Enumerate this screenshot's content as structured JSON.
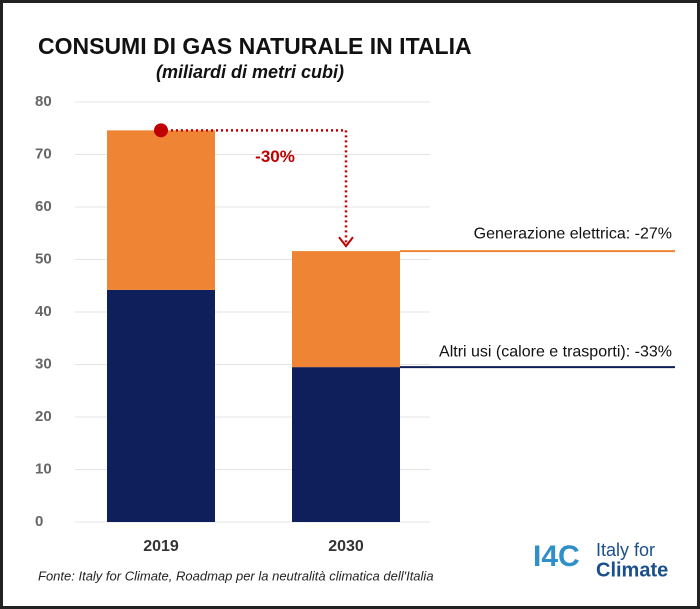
{
  "chart_data": {
    "type": "stacked-bar",
    "title": "CONSUMI DI GAS NATURALE IN ITALIA",
    "subtitle": "(miliardi di metri cubi)",
    "categories": [
      "2019",
      "2030"
    ],
    "series": [
      {
        "color": "#0f1f5c",
        "values": [
          44.2,
          29.5
        ]
      },
      {
        "color": "#ef8534",
        "values": [
          30.4,
          22.1
        ]
      }
    ],
    "ylim": [
      0,
      80
    ],
    "yticks": [
      0,
      10,
      20,
      30,
      40,
      50,
      60,
      70,
      80
    ],
    "grid": true,
    "annotations": {
      "change": "-30%",
      "generation": "Generazione elettrica: -27%",
      "other": "Altri usi (calore e trasporti): -33%"
    },
    "source": "Fonte: Italy for Climate, Roadmap per la neutralità climatica dell'Italia",
    "logo": {
      "mark": "I4C",
      "line1": "Italy for",
      "line2": "Climate"
    }
  }
}
